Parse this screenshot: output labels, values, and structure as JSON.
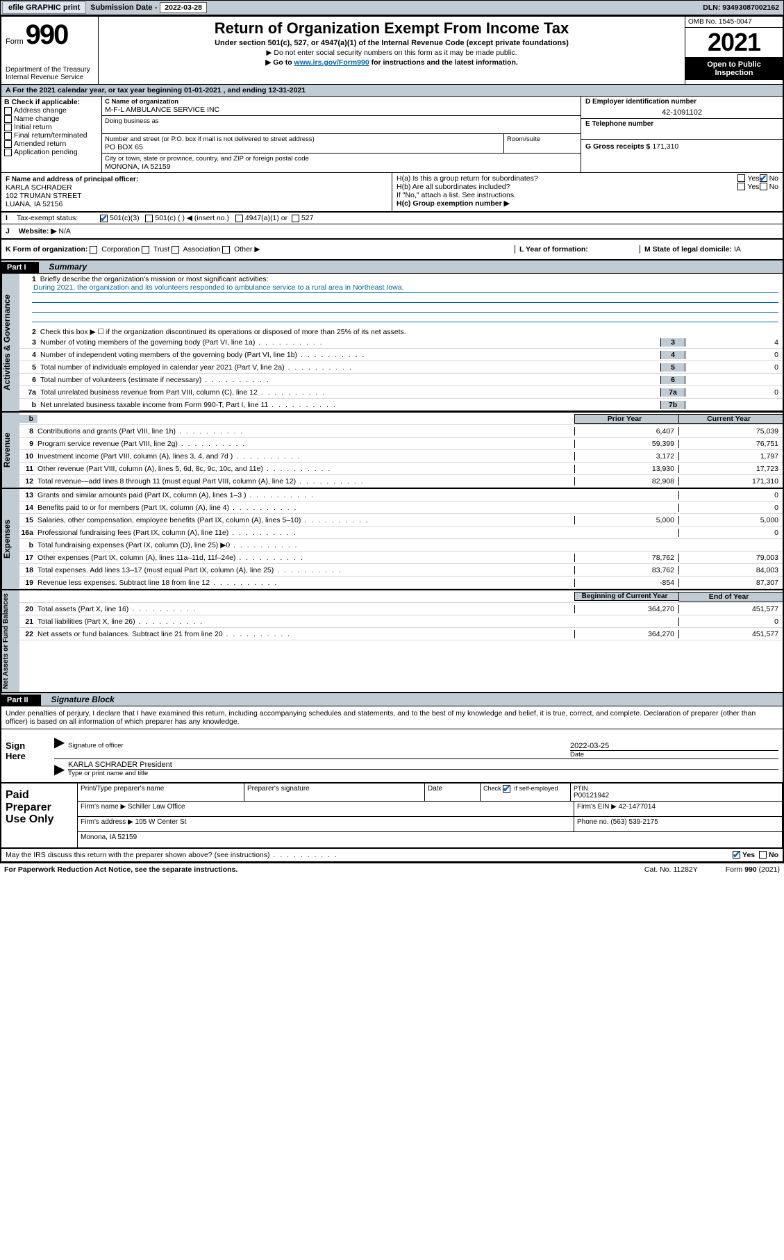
{
  "topbar": {
    "efile_btn": "efile GRAPHIC print",
    "sub_date_lbl": "Submission Date -",
    "sub_date": "2022-03-28",
    "dln": "DLN: 93493087002162"
  },
  "header": {
    "form_label": "Form",
    "form_num": "990",
    "dept1": "Department of the Treasury",
    "dept2": "Internal Revenue Service",
    "title": "Return of Organization Exempt From Income Tax",
    "subtitle": "Under section 501(c), 527, or 4947(a)(1) of the Internal Revenue Code (except private foundations)",
    "instr1": "▶ Do not enter social security numbers on this form as it may be made public.",
    "instr2_pre": "▶ Go to ",
    "instr2_link": "www.irs.gov/Form990",
    "instr2_post": " for instructions and the latest information.",
    "omb": "OMB No. 1545-0047",
    "year": "2021",
    "open_pub1": "Open to Public",
    "open_pub2": "Inspection"
  },
  "line_a": {
    "text_pre": "For the 2021 calendar year, or tax year beginning ",
    "begin": "01-01-2021",
    "mid": " , and ending ",
    "end": "12-31-2021"
  },
  "box_b": {
    "label": "B Check if applicable:",
    "items": [
      "Address change",
      "Name change",
      "Initial return",
      "Final return/terminated",
      "Amended return",
      "Application pending"
    ]
  },
  "box_c": {
    "name_lbl": "C Name of organization",
    "name": "M-F-L AMBULANCE SERVICE INC",
    "dba_lbl": "Doing business as",
    "dba": "",
    "street_lbl": "Number and street (or P.O. box if mail is not delivered to street address)",
    "street": "PO BOX 65",
    "suite_lbl": "Room/suite",
    "suite": "",
    "city_lbl": "City or town, state or province, country, and ZIP or foreign postal code",
    "city": "MONONA, IA  52159"
  },
  "box_de": {
    "d_lbl": "D Employer identification number",
    "ein": "42-1091102",
    "e_lbl": "E Telephone number",
    "phone": "",
    "g_lbl": "G Gross receipts $",
    "gross": "171,310"
  },
  "box_f": {
    "lbl": "F Name and address of principal officer:",
    "name": "KARLA SCHRADER",
    "street": "102 TRUMAN STREET",
    "city": "LUANA, IA  52156"
  },
  "box_h": {
    "ha": "H(a)  Is this a group return for subordinates?",
    "hb": "H(b)  Are all subordinates included?",
    "hb_note": "If \"No,\" attach a list. See instructions.",
    "hc": "H(c)  Group exemption number ▶",
    "yes": "Yes",
    "no": "No"
  },
  "line_i": {
    "lbl": "Tax-exempt status:",
    "opt1": "501(c)(3)",
    "opt2": "501(c) (    ) ◀ (insert no.)",
    "opt3": "4947(a)(1) or",
    "opt4": "527"
  },
  "line_j": {
    "lbl": "Website: ▶",
    "val": "N/A"
  },
  "line_k": {
    "lbl": "K Form of organization:",
    "corp": "Corporation",
    "trust": "Trust",
    "assoc": "Association",
    "other": "Other ▶"
  },
  "line_l": {
    "lbl": "L Year of formation:",
    "val": ""
  },
  "line_m": {
    "lbl": "M State of legal domicile:",
    "val": "IA"
  },
  "part1": {
    "hdr": "Part I",
    "title": "Summary",
    "side_act": "Activities & Governance",
    "side_rev": "Revenue",
    "side_exp": "Expenses",
    "side_net": "Net Assets or Fund Balances",
    "q1_lbl": "Briefly describe the organization's mission or most significant activities:",
    "q1_text": "During 2021, the organization and its volunteers responded to ambulance service to a rural area in Northeast Iowa.",
    "q2": "Check this box ▶ ☐  if the organization discontinued its operations or disposed of more than 25% of its net assets.",
    "q3": "Number of voting members of the governing body (Part VI, line 1a)",
    "q3v": "4",
    "q4": "Number of independent voting members of the governing body (Part VI, line 1b)",
    "q4v": "0",
    "q5": "Total number of individuals employed in calendar year 2021 (Part V, line 2a)",
    "q5v": "0",
    "q6": "Total number of volunteers (estimate if necessary)",
    "q6v": "",
    "q7a": "Total unrelated business revenue from Part VIII, column (C), line 12",
    "q7av": "0",
    "q7b": "Net unrelated business taxable income from Form 990-T, Part I, line 11",
    "q7bv": "",
    "prior_hdr": "Prior Year",
    "curr_hdr": "Current Year",
    "lines": [
      {
        "n": "8",
        "t": "Contributions and grants (Part VIII, line 1h)",
        "p": "6,407",
        "c": "75,039"
      },
      {
        "n": "9",
        "t": "Program service revenue (Part VIII, line 2g)",
        "p": "59,399",
        "c": "76,751"
      },
      {
        "n": "10",
        "t": "Investment income (Part VIII, column (A), lines 3, 4, and 7d )",
        "p": "3,172",
        "c": "1,797"
      },
      {
        "n": "11",
        "t": "Other revenue (Part VIII, column (A), lines 5, 6d, 8c, 9c, 10c, and 11e)",
        "p": "13,930",
        "c": "17,723"
      },
      {
        "n": "12",
        "t": "Total revenue—add lines 8 through 11 (must equal Part VIII, column (A), line 12)",
        "p": "82,908",
        "c": "171,310"
      },
      {
        "n": "13",
        "t": "Grants and similar amounts paid (Part IX, column (A), lines 1–3 )",
        "p": "",
        "c": "0"
      },
      {
        "n": "14",
        "t": "Benefits paid to or for members (Part IX, column (A), line 4)",
        "p": "",
        "c": "0"
      },
      {
        "n": "15",
        "t": "Salaries, other compensation, employee benefits (Part IX, column (A), lines 5–10)",
        "p": "5,000",
        "c": "5,000"
      },
      {
        "n": "16a",
        "t": "Professional fundraising fees (Part IX, column (A), line 11e)",
        "p": "",
        "c": "0"
      },
      {
        "n": "b",
        "t": "Total fundraising expenses (Part IX, column (D), line 25) ▶0",
        "p": "SHADE",
        "c": "SHADE"
      },
      {
        "n": "17",
        "t": "Other expenses (Part IX, column (A), lines 11a–11d, 11f–24e)",
        "p": "78,762",
        "c": "79,003"
      },
      {
        "n": "18",
        "t": "Total expenses. Add lines 13–17 (must equal Part IX, column (A), line 25)",
        "p": "83,762",
        "c": "84,003"
      },
      {
        "n": "19",
        "t": "Revenue less expenses. Subtract line 18 from line 12",
        "p": "-854",
        "c": "87,307"
      }
    ],
    "beg_hdr": "Beginning of Current Year",
    "end_hdr": "End of Year",
    "net_lines": [
      {
        "n": "20",
        "t": "Total assets (Part X, line 16)",
        "p": "364,270",
        "c": "451,577"
      },
      {
        "n": "21",
        "t": "Total liabilities (Part X, line 26)",
        "p": "",
        "c": "0"
      },
      {
        "n": "22",
        "t": "Net assets or fund balances. Subtract line 21 from line 20",
        "p": "364,270",
        "c": "451,577"
      }
    ]
  },
  "part2": {
    "hdr": "Part II",
    "title": "Signature Block",
    "declare": "Under penalties of perjury, I declare that I have examined this return, including accompanying schedules and statements, and to the best of my knowledge and belief, it is true, correct, and complete. Declaration of preparer (other than officer) is based on all information of which preparer has any knowledge.",
    "sign_here": "Sign Here",
    "sig_officer_lbl": "Signature of officer",
    "sig_date_lbl": "Date",
    "sig_date": "2022-03-25",
    "officer_name": "KARLA SCHRADER  President",
    "type_name_lbl": "Type or print name and title",
    "paid_lbl": "Paid Preparer Use Only",
    "prep_name_lbl": "Print/Type preparer's name",
    "prep_sig_lbl": "Preparer's signature",
    "prep_date_lbl": "Date",
    "check_if": "Check ☑ if self-employed",
    "ptin_lbl": "PTIN",
    "ptin": "P00121942",
    "firm_name_lbl": "Firm's name     ▶",
    "firm_name": "Schiller Law Office",
    "firm_ein_lbl": "Firm's EIN ▶",
    "firm_ein": "42-1477014",
    "firm_addr_lbl": "Firm's address ▶",
    "firm_addr1": "105 W Center St",
    "firm_addr2": "Monona, IA  52159",
    "phone_lbl": "Phone no.",
    "phone": "(563) 539-2175",
    "may_irs": "May the IRS discuss this return with the preparer shown above? (see instructions)"
  },
  "footer": {
    "notice": "For Paperwork Reduction Act Notice, see the separate instructions.",
    "cat": "Cat. No. 11282Y",
    "form": "Form 990 (2021)"
  }
}
